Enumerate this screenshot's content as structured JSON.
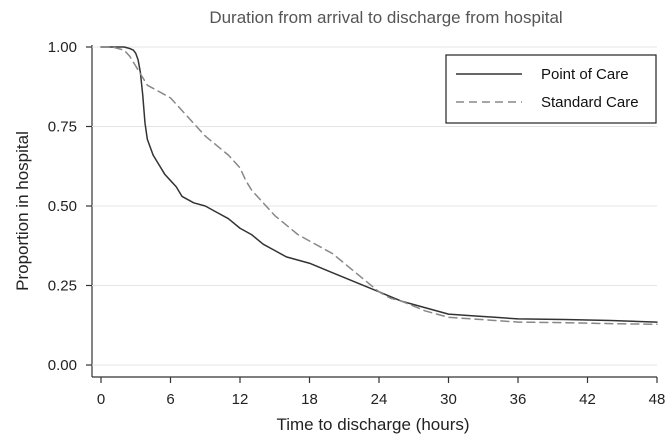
{
  "chart_data": {
    "type": "line",
    "title": "Duration from arrival to discharge from hospital",
    "xlabel": "Time to discharge (hours)",
    "ylabel": "Proportion in hospital",
    "xlim": [
      0,
      48
    ],
    "ylim": [
      0,
      1
    ],
    "x_ticks": [
      0,
      6,
      12,
      18,
      24,
      30,
      36,
      42,
      48
    ],
    "y_ticks": [
      0,
      0.25,
      0.5,
      0.75,
      1
    ],
    "x_tick_labels": [
      "0",
      "6",
      "12",
      "18",
      "24",
      "30",
      "36",
      "42",
      "48"
    ],
    "y_tick_labels": [
      "0.00",
      "0.25",
      "0.50",
      "0.75",
      "1.00"
    ],
    "grid": "horizontal",
    "legend_position": "top-right",
    "series": [
      {
        "name": "Point of Care",
        "style": "solid",
        "color": "#333333",
        "x": [
          0,
          1,
          2,
          2.5,
          2.8,
          3.0,
          3.2,
          3.4,
          3.6,
          3.8,
          4.0,
          4.2,
          4.5,
          5.0,
          5.5,
          6.0,
          6.5,
          7.0,
          8.0,
          9.0,
          10.0,
          11.0,
          12.0,
          13.0,
          14.0,
          15.0,
          16.0,
          18.0,
          20.0,
          22.0,
          24.0,
          26.0,
          28.0,
          30.0,
          32.0,
          34.0,
          36.0,
          40.0,
          44.0,
          48.0
        ],
        "y": [
          1.0,
          1.0,
          1.0,
          0.995,
          0.99,
          0.98,
          0.96,
          0.92,
          0.85,
          0.76,
          0.71,
          0.69,
          0.66,
          0.63,
          0.6,
          0.58,
          0.56,
          0.53,
          0.51,
          0.5,
          0.48,
          0.46,
          0.43,
          0.41,
          0.38,
          0.36,
          0.34,
          0.32,
          0.29,
          0.26,
          0.23,
          0.2,
          0.18,
          0.16,
          0.155,
          0.15,
          0.145,
          0.143,
          0.14,
          0.135
        ]
      },
      {
        "name": "Standard Care",
        "style": "dashed",
        "color": "#888888",
        "x": [
          0,
          1,
          2,
          2.5,
          3.0,
          3.5,
          4.0,
          5.0,
          6.0,
          7.0,
          8.0,
          9.0,
          10.0,
          11.0,
          12.0,
          12.5,
          13.0,
          14.0,
          15.0,
          16.0,
          17.0,
          18.0,
          19.0,
          20.0,
          21.0,
          22.0,
          23.0,
          24.0,
          25.0,
          26.0,
          28.0,
          30.0,
          32.0,
          34.0,
          36.0,
          40.0,
          44.0,
          48.0
        ],
        "y": [
          1.0,
          1.0,
          0.99,
          0.97,
          0.94,
          0.91,
          0.88,
          0.86,
          0.84,
          0.8,
          0.76,
          0.72,
          0.69,
          0.66,
          0.62,
          0.58,
          0.55,
          0.51,
          0.47,
          0.44,
          0.41,
          0.39,
          0.37,
          0.35,
          0.32,
          0.29,
          0.26,
          0.23,
          0.21,
          0.2,
          0.17,
          0.15,
          0.145,
          0.14,
          0.135,
          0.133,
          0.13,
          0.128
        ]
      }
    ]
  }
}
